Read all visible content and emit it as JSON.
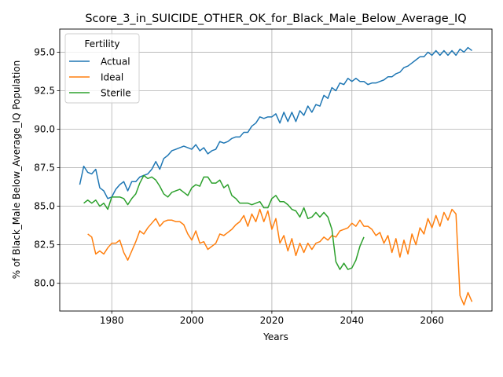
{
  "chart_data": {
    "type": "line",
    "title": "Score_3_in_SUICIDE_OTHER_OK_for_Black_Male_Below_Average_IQ",
    "xlabel": "Years",
    "ylabel": "% of Black_Male Below_Average_IQ Population",
    "xlim": [
      1967,
      2075
    ],
    "ylim": [
      78.2,
      96.5
    ],
    "xticks": [
      1980,
      2000,
      2020,
      2040,
      2060
    ],
    "yticks": [
      80.0,
      82.5,
      85.0,
      87.5,
      90.0,
      92.5,
      95.0
    ],
    "ytick_labels": [
      "80.0",
      "82.5",
      "85.0",
      "87.5",
      "90.0",
      "92.5",
      "95.0"
    ],
    "grid": true,
    "legend": {
      "title": "Fertility",
      "position": "top-left"
    },
    "series": [
      {
        "name": "Actual",
        "color": "#1f77b4",
        "x_start": 1972,
        "values": [
          86.4,
          87.6,
          87.2,
          87.1,
          87.4,
          86.2,
          86.0,
          85.5,
          85.6,
          86.1,
          86.4,
          86.6,
          86.0,
          86.6,
          86.6,
          86.9,
          87.0,
          87.1,
          87.4,
          87.9,
          87.4,
          88.1,
          88.3,
          88.6,
          88.7,
          88.8,
          88.9,
          88.8,
          88.7,
          89.0,
          88.6,
          88.8,
          88.4,
          88.6,
          88.7,
          89.2,
          89.1,
          89.2,
          89.4,
          89.5,
          89.5,
          89.8,
          89.8,
          90.2,
          90.4,
          90.8,
          90.7,
          90.8,
          90.8,
          91.0,
          90.4,
          91.1,
          90.5,
          91.1,
          90.5,
          91.2,
          90.9,
          91.5,
          91.1,
          91.6,
          91.5,
          92.2,
          92.0,
          92.7,
          92.5,
          93.0,
          92.9,
          93.3,
          93.1,
          93.3,
          93.1,
          93.1,
          92.9,
          93.0,
          93.0,
          93.1,
          93.2,
          93.4,
          93.4,
          93.6,
          93.7,
          94.0,
          94.1,
          94.3,
          94.5,
          94.7,
          94.7,
          95.0,
          94.8,
          95.1,
          94.8,
          95.1,
          94.8,
          95.1,
          94.8,
          95.2,
          95.0,
          95.3,
          95.1
        ]
      },
      {
        "name": "Ideal",
        "color": "#ff7f0e",
        "x_start": 1974,
        "values": [
          83.2,
          83.0,
          81.9,
          82.1,
          81.9,
          82.3,
          82.6,
          82.6,
          82.8,
          82.0,
          81.5,
          82.1,
          82.7,
          83.4,
          83.2,
          83.6,
          83.9,
          84.2,
          83.7,
          84.0,
          84.1,
          84.1,
          84.0,
          84.0,
          83.8,
          83.2,
          82.8,
          83.4,
          82.6,
          82.7,
          82.2,
          82.4,
          82.6,
          83.2,
          83.1,
          83.3,
          83.5,
          83.8,
          84.0,
          84.4,
          83.7,
          84.5,
          84.0,
          84.8,
          84.0,
          84.7,
          83.5,
          84.2,
          82.6,
          83.1,
          82.1,
          82.9,
          81.8,
          82.6,
          82.0,
          82.6,
          82.2,
          82.6,
          82.7,
          83.0,
          82.8,
          83.1,
          83.0,
          83.4,
          83.5,
          83.6,
          83.9,
          83.7,
          84.1,
          83.7,
          83.7,
          83.5,
          83.1,
          83.3,
          82.6,
          83.1,
          82.0,
          82.9,
          81.7,
          82.8,
          81.9,
          83.2,
          82.5,
          83.6,
          83.2,
          84.2,
          83.6,
          84.4,
          83.7,
          84.6,
          84.1,
          84.8,
          84.5,
          79.2,
          78.6,
          79.4,
          78.8
        ]
      },
      {
        "name": "Sterile",
        "color": "#2ca02c",
        "x_start": 1973,
        "values": [
          85.2,
          85.4,
          85.2,
          85.4,
          85.0,
          85.2,
          84.8,
          85.6,
          85.6,
          85.6,
          85.5,
          85.1,
          85.5,
          85.8,
          86.5,
          87.0,
          86.8,
          86.9,
          86.7,
          86.3,
          85.8,
          85.6,
          85.9,
          86.0,
          86.1,
          85.9,
          85.7,
          86.2,
          86.4,
          86.3,
          86.9,
          86.9,
          86.5,
          86.5,
          86.7,
          86.2,
          86.4,
          85.7,
          85.5,
          85.2,
          85.2,
          85.2,
          85.1,
          85.2,
          85.3,
          84.9,
          84.9,
          85.5,
          85.7,
          85.3,
          85.3,
          85.1,
          84.8,
          84.7,
          84.3,
          84.9,
          84.2,
          84.3,
          84.6,
          84.3,
          84.6,
          84.3,
          83.5,
          81.4,
          80.9,
          81.3,
          80.9,
          81.0,
          81.5,
          82.4,
          83.0
        ]
      }
    ]
  }
}
